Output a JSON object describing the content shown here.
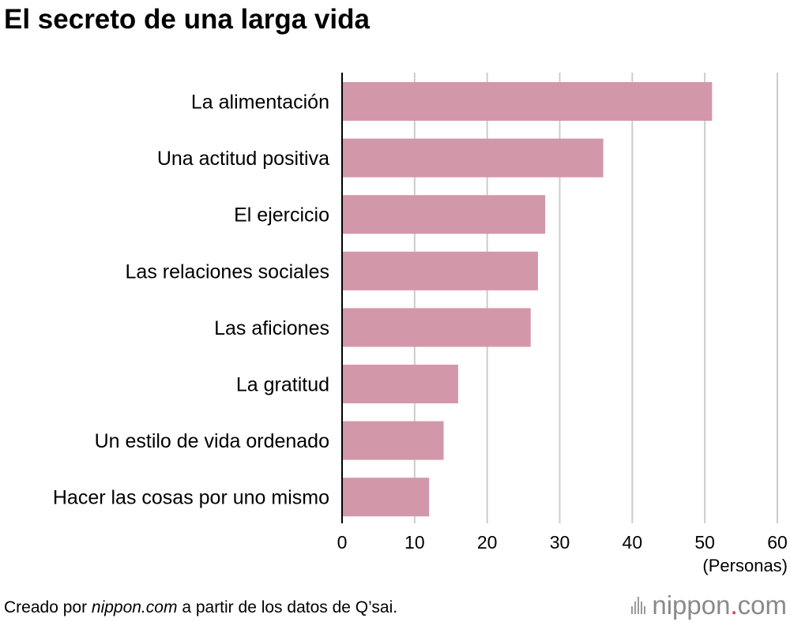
{
  "title": "El secreto de una larga vida",
  "source": {
    "prefix": "Creado por ",
    "site": "nippon.com",
    "suffix": " a partir de los datos de Q’sai."
  },
  "logo": {
    "name": "nippon",
    "dot": ".",
    "tld": "com"
  },
  "colors": {
    "bar": "#d397aa",
    "grid": "#cccccc",
    "axis": "#000000"
  },
  "chart_data": {
    "type": "bar",
    "orientation": "horizontal",
    "title": "El secreto de una larga vida",
    "categories": [
      "La alimentación",
      "Una actitud positiva",
      "El ejercicio",
      "Las relaciones sociales",
      "Las aficiones",
      "La gratitud",
      "Un estilo de vida ordenado",
      "Hacer las cosas por uno mismo"
    ],
    "values": [
      51,
      36,
      28,
      27,
      26,
      16,
      14,
      12
    ],
    "xlim": [
      0,
      60
    ],
    "xticks": [
      "0",
      "10",
      "20",
      "30",
      "40",
      "50",
      "60"
    ],
    "xlabel": "(Personas)",
    "ylabel": "",
    "grid": true
  }
}
